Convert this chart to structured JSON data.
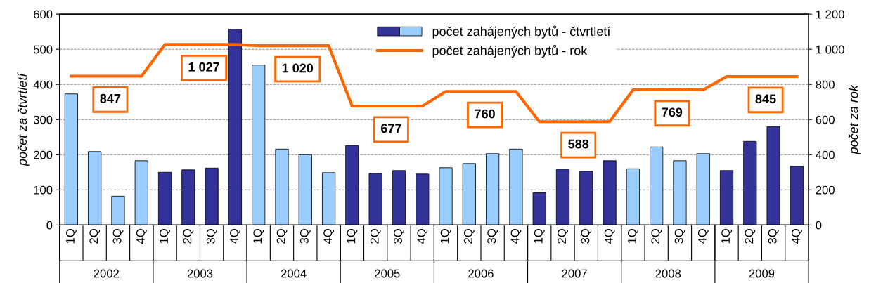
{
  "chart_data": {
    "type": "bar",
    "categories": [
      "1Q",
      "2Q",
      "3Q",
      "4Q",
      "1Q",
      "2Q",
      "3Q",
      "4Q",
      "1Q",
      "2Q",
      "3Q",
      "4Q",
      "1Q",
      "2Q",
      "3Q",
      "4Q",
      "1Q",
      "2Q",
      "3Q",
      "4Q",
      "1Q",
      "2Q",
      "3Q",
      "4Q",
      "1Q",
      "2Q",
      "3Q",
      "4Q",
      "1Q",
      "2Q",
      "3Q",
      "4Q"
    ],
    "series": [
      {
        "name": "počet zahájených bytů - čtvrtletí",
        "colors": [
          "#99ccff",
          "#99ccff",
          "#99ccff",
          "#99ccff",
          "#333399",
          "#333399",
          "#333399",
          "#333399",
          "#99ccff",
          "#99ccff",
          "#99ccff",
          "#99ccff",
          "#333399",
          "#333399",
          "#333399",
          "#333399",
          "#99ccff",
          "#99ccff",
          "#99ccff",
          "#99ccff",
          "#333399",
          "#333399",
          "#333399",
          "#333399",
          "#99ccff",
          "#99ccff",
          "#99ccff",
          "#99ccff",
          "#333399",
          "#333399",
          "#333399",
          "#333399"
        ],
        "values": [
          373,
          209,
          82,
          183,
          150,
          157,
          162,
          557,
          455,
          216,
          200,
          149,
          226,
          147,
          155,
          145,
          163,
          175,
          203,
          216,
          92,
          159,
          153,
          183,
          160,
          222,
          183,
          203,
          155,
          238,
          280,
          167
        ]
      },
      {
        "name": "počet zahájených bytů - rok",
        "type": "line",
        "axis": "y2",
        "color": "#ff6600",
        "values": [
          847,
          847,
          847,
          847,
          1027,
          1027,
          1027,
          1027,
          1020,
          1020,
          1020,
          1020,
          677,
          677,
          677,
          677,
          760,
          760,
          760,
          760,
          588,
          588,
          588,
          588,
          769,
          769,
          769,
          769,
          845,
          845,
          845,
          845
        ],
        "value_labels": [
          null,
          "847",
          null,
          null,
          null,
          "1 027",
          null,
          null,
          null,
          "1 020",
          null,
          null,
          null,
          "677",
          null,
          null,
          null,
          "760",
          null,
          null,
          null,
          "588",
          null,
          null,
          null,
          "769",
          null,
          null,
          null,
          "845",
          null,
          null
        ]
      }
    ],
    "ylabel": "počet za čtvrtletí",
    "y2label": "počet za rok",
    "ylim": [
      0,
      600
    ],
    "yticks": [
      0,
      100,
      200,
      300,
      400,
      500,
      600
    ],
    "y2lim": [
      0,
      1200
    ],
    "y2ticks": [
      0,
      200,
      400,
      600,
      800,
      {
        "value": 1000,
        "label": "1 000"
      },
      {
        "value": 1200,
        "label": "1 200"
      }
    ],
    "annotations": [
      "2002",
      "2003",
      "2004",
      "2005",
      "2006",
      "2007",
      "2008",
      "2009"
    ],
    "grid": "y",
    "legend": "top"
  }
}
